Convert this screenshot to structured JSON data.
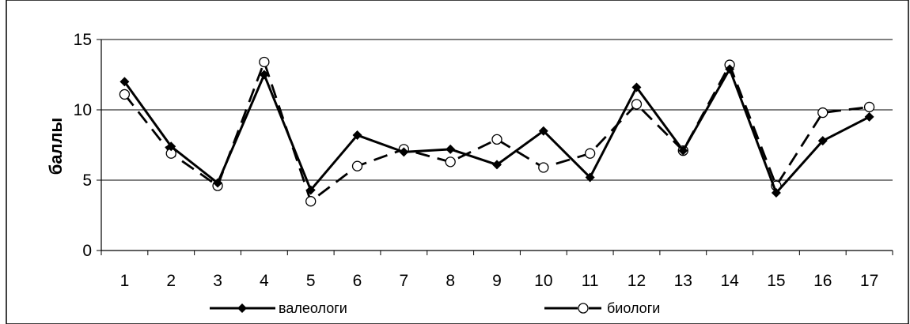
{
  "chart_data": {
    "type": "line",
    "title": "",
    "xlabel": "",
    "ylabel": "баллы",
    "categories": [
      "1",
      "2",
      "3",
      "4",
      "5",
      "6",
      "7",
      "8",
      "9",
      "10",
      "11",
      "12",
      "13",
      "14",
      "15",
      "16",
      "17"
    ],
    "yticks": [
      "0",
      "5",
      "10",
      "15"
    ],
    "ylim": [
      0,
      15
    ],
    "grid": true,
    "legend_position": "bottom",
    "series": [
      {
        "name": "валеологи",
        "values": [
          12.0,
          7.4,
          4.8,
          12.5,
          4.3,
          8.2,
          7.0,
          7.2,
          6.1,
          8.5,
          5.2,
          11.6,
          7.1,
          12.9,
          4.1,
          7.8,
          9.5
        ],
        "marker": "diamond",
        "line_style": "solid",
        "color": "#000000"
      },
      {
        "name": "биологи",
        "values": [
          11.1,
          6.9,
          4.6,
          13.4,
          3.5,
          6.0,
          7.2,
          6.3,
          7.9,
          5.9,
          6.9,
          10.4,
          7.1,
          13.2,
          4.6,
          9.8,
          10.2
        ],
        "marker": "circle",
        "line_style": "dashed",
        "color": "#000000"
      }
    ]
  }
}
